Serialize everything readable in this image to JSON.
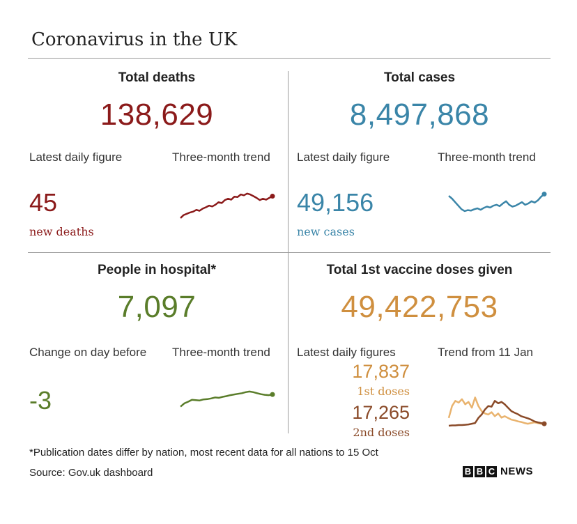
{
  "title": "Coronavirus in the UK",
  "colors": {
    "deaths": "#8b1a1a",
    "cases": "#3a85a8",
    "hospital": "#5a7d2a",
    "vaccine_first": "#cf8f3f",
    "vaccine_second": "#8a4a28",
    "vaccine_light": "#e9b36e"
  },
  "deaths": {
    "heading": "Total deaths",
    "total": "138,629",
    "daily_label": "Latest daily figure",
    "trend_label": "Three-month trend",
    "daily_value": "45",
    "daily_unit": "new deaths"
  },
  "cases": {
    "heading": "Total cases",
    "total": "8,497,868",
    "daily_label": "Latest daily figure",
    "trend_label": "Three-month trend",
    "daily_value": "49,156",
    "daily_unit": "new cases"
  },
  "hospital": {
    "heading": "People in hospital*",
    "total": "7,097",
    "daily_label": "Change on day before",
    "trend_label": "Three-month trend",
    "daily_value": "-3"
  },
  "vaccine": {
    "heading": "Total 1st vaccine doses given",
    "total": "49,422,753",
    "daily_label": "Latest daily figures",
    "trend_label": "Trend from 11 Jan",
    "first_value": "17,837",
    "first_unit": "1st doses",
    "second_value": "17,265",
    "second_unit": "2nd doses"
  },
  "chart_data": [
    {
      "type": "line",
      "name": "deaths-trend",
      "title": "Three-month trend",
      "values": [
        5,
        12,
        15,
        18,
        20,
        24,
        22,
        27,
        30,
        34,
        32,
        36,
        42,
        40,
        47,
        50,
        48,
        55,
        54,
        60,
        58,
        62,
        60,
        56,
        52,
        47,
        50,
        48,
        52,
        56
      ]
    },
    {
      "type": "line",
      "name": "cases-trend",
      "title": "Three-month trend",
      "values": [
        42,
        36,
        28,
        20,
        12,
        8,
        10,
        9,
        12,
        14,
        11,
        15,
        18,
        16,
        20,
        22,
        19,
        25,
        30,
        22,
        18,
        20,
        24,
        28,
        22,
        25,
        30,
        27,
        32,
        40,
        46
      ]
    },
    {
      "type": "line",
      "name": "hospital-trend",
      "title": "Three-month trend",
      "values": [
        5,
        15,
        20,
        26,
        25,
        24,
        27,
        28,
        30,
        33,
        32,
        35,
        37,
        40,
        42,
        44,
        46,
        49,
        51,
        49,
        46,
        43,
        41,
        40,
        42
      ]
    },
    {
      "type": "line",
      "name": "vaccine-trend",
      "title": "Trend from 11 Jan",
      "series": [
        {
          "name": "1st doses",
          "values": [
            25,
            60,
            75,
            70,
            80,
            65,
            72,
            55,
            85,
            60,
            45,
            38,
            35,
            42,
            30,
            38,
            26,
            30,
            25,
            20,
            18,
            15,
            13,
            10,
            8,
            10,
            12,
            10,
            8,
            7
          ]
        },
        {
          "name": "2nd doses",
          "values": [
            2,
            3,
            3,
            4,
            4,
            5,
            6,
            8,
            10,
            25,
            35,
            50,
            60,
            58,
            75,
            68,
            72,
            65,
            55,
            45,
            40,
            36,
            30,
            27,
            24,
            20,
            15,
            12,
            10,
            8
          ]
        }
      ]
    }
  ]
}
